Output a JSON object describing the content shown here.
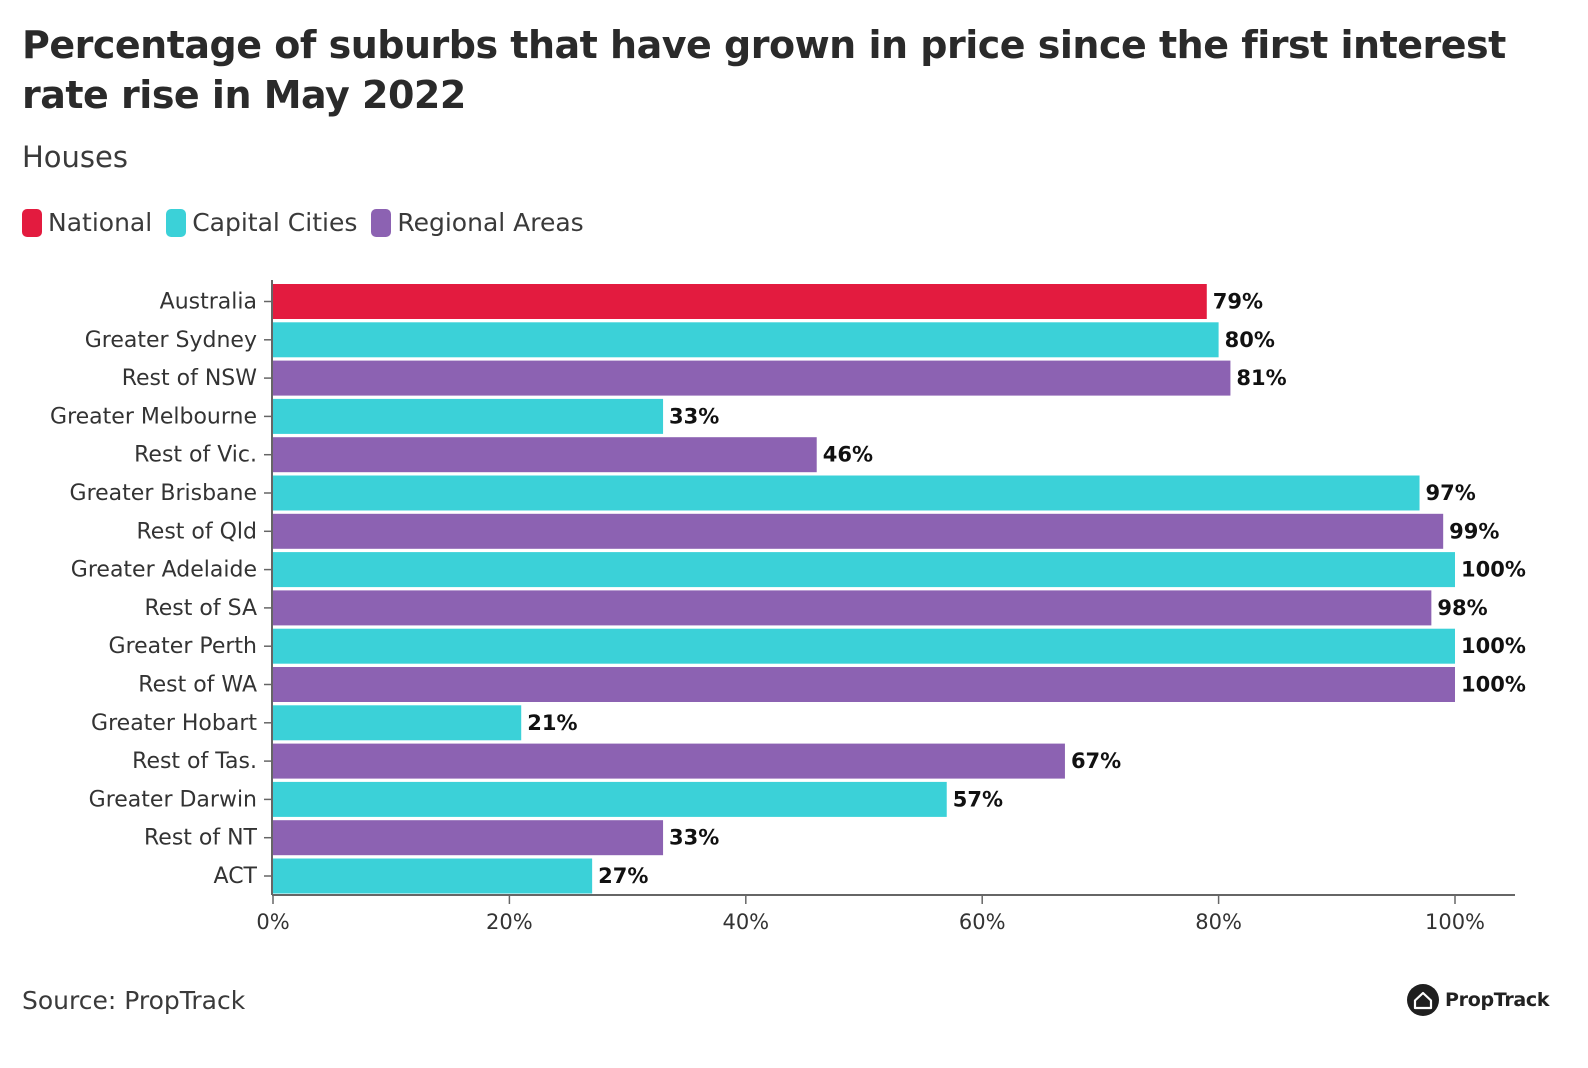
{
  "header": {
    "title": "Percentage of suburbs that have grown in price since the first interest rate rise in May 2022",
    "subtitle": "Houses"
  },
  "legend": [
    {
      "label": "National",
      "color": "#e31b3f"
    },
    {
      "label": "Capital Cities",
      "color": "#3bd1d8"
    },
    {
      "label": "Regional Areas",
      "color": "#8c62b2"
    }
  ],
  "chart_data": {
    "type": "bar",
    "orientation": "horizontal",
    "title": "Percentage of suburbs that have grown in price since the first interest rate rise in May 2022",
    "subtitle": "Houses",
    "xlabel": "",
    "ylabel": "",
    "xlim": [
      0,
      100
    ],
    "x_ticks": [
      "0%",
      "20%",
      "40%",
      "60%",
      "80%",
      "100%"
    ],
    "x_tick_values": [
      0,
      20,
      40,
      60,
      80,
      100
    ],
    "grid": false,
    "legend_position": "top-left",
    "categories": [
      "Australia",
      "Greater Sydney",
      "Rest of NSW",
      "Greater Melbourne",
      "Rest of Vic.",
      "Greater Brisbane",
      "Rest of Qld",
      "Greater Adelaide",
      "Rest of SA",
      "Greater Perth",
      "Rest of WA",
      "Greater Hobart",
      "Rest of Tas.",
      "Greater Darwin",
      "Rest of NT",
      "ACT"
    ],
    "values": [
      79,
      80,
      81,
      33,
      46,
      97,
      99,
      100,
      98,
      100,
      100,
      21,
      67,
      57,
      33,
      27
    ],
    "value_labels": [
      "79%",
      "80%",
      "81%",
      "33%",
      "46%",
      "97%",
      "99%",
      "100%",
      "98%",
      "100%",
      "100%",
      "21%",
      "67%",
      "57%",
      "33%",
      "27%"
    ],
    "groups": [
      "National",
      "Capital Cities",
      "Regional Areas",
      "Capital Cities",
      "Regional Areas",
      "Capital Cities",
      "Regional Areas",
      "Capital Cities",
      "Regional Areas",
      "Capital Cities",
      "Regional Areas",
      "Capital Cities",
      "Regional Areas",
      "Capital Cities",
      "Regional Areas",
      "Capital Cities"
    ]
  },
  "footer": {
    "source": "Source: PropTrack",
    "brand": "PropTrack",
    "brand_icon": "house-icon"
  }
}
